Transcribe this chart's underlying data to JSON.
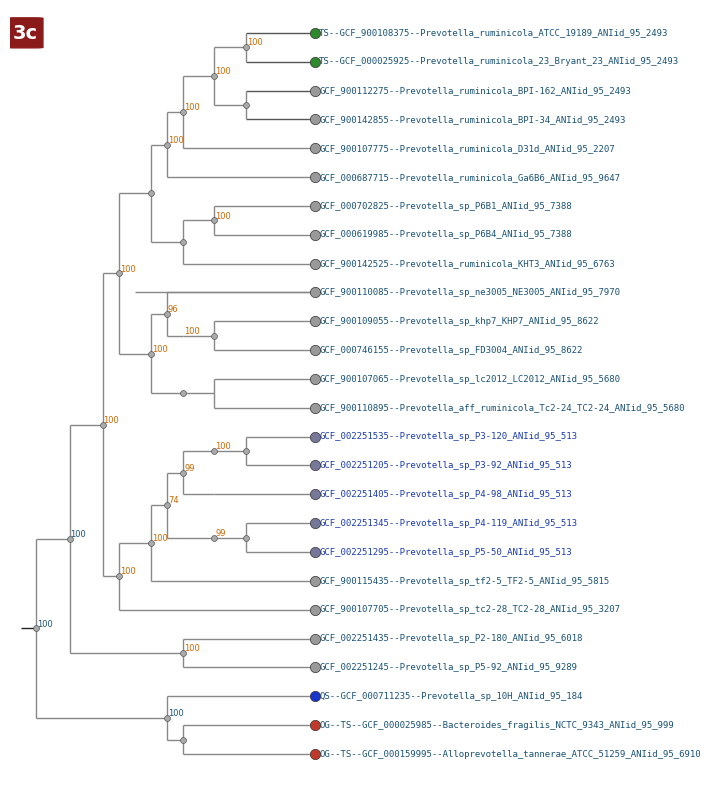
{
  "taxa": [
    {
      "y": 1,
      "label": "TS--GCF_900108375--Prevotella_ruminicola_ATCC_19189_ANIid_95_2493",
      "dot": "#2d8a2d",
      "tc": "#1a5276"
    },
    {
      "y": 2,
      "label": "TS--GCF_000025925--Prevotella_ruminicola_23_Bryant_23_ANIid_95_2493",
      "dot": "#2d8a2d",
      "tc": "#1a5276"
    },
    {
      "y": 3,
      "label": "GCF_900112275--Prevotella_ruminicola_BPI-162_ANIid_95_2493",
      "dot": "#999999",
      "tc": "#1a5276"
    },
    {
      "y": 4,
      "label": "GCF_900142855--Prevotella_ruminicola_BPI-34_ANIid_95_2493",
      "dot": "#999999",
      "tc": "#1a5276"
    },
    {
      "y": 5,
      "label": "GCF_900107775--Prevotella_ruminicola_D31d_ANIid_95_2207",
      "dot": "#999999",
      "tc": "#1a5276"
    },
    {
      "y": 6,
      "label": "GCF_000687715--Prevotella_ruminicola_Ga6B6_ANIid_95_9647",
      "dot": "#999999",
      "tc": "#1a5276"
    },
    {
      "y": 7,
      "label": "GCF_000702825--Prevotella_sp_P6B1_ANIid_95_7388",
      "dot": "#999999",
      "tc": "#1a5276"
    },
    {
      "y": 8,
      "label": "GCF_000619985--Prevotella_sp_P6B4_ANIid_95_7388",
      "dot": "#999999",
      "tc": "#1a5276"
    },
    {
      "y": 9,
      "label": "GCF_900142525--Prevotella_ruminicola_KHT3_ANIid_95_6763",
      "dot": "#999999",
      "tc": "#1a5276"
    },
    {
      "y": 10,
      "label": "GCF_900110085--Prevotella_sp_ne3005_NE3005_ANIid_95_7970",
      "dot": "#999999",
      "tc": "#1a5276"
    },
    {
      "y": 11,
      "label": "GCF_900109055--Prevotella_sp_khp7_KHP7_ANIid_95_8622",
      "dot": "#999999",
      "tc": "#1a5276"
    },
    {
      "y": 12,
      "label": "GCF_000746155--Prevotella_sp_FD3004_ANIid_95_8622",
      "dot": "#999999",
      "tc": "#1a5276"
    },
    {
      "y": 13,
      "label": "GCF_900107065--Prevotella_sp_lc2012_LC2012_ANIid_95_5680",
      "dot": "#999999",
      "tc": "#1a5276"
    },
    {
      "y": 14,
      "label": "GCF_900110895--Prevotella_aff_ruminicola_Tc2-24_TC2-24_ANIid_95_5680",
      "dot": "#999999",
      "tc": "#1a5276"
    },
    {
      "y": 15,
      "label": "GCF_002251535--Prevotella_sp_P3-120_ANIid_95_513",
      "dot": "#777799",
      "tc": "#1a3ab0"
    },
    {
      "y": 16,
      "label": "GCF_002251205--Prevotella_sp_P3-92_ANIid_95_513",
      "dot": "#777799",
      "tc": "#1a3ab0"
    },
    {
      "y": 17,
      "label": "GCF_002251405--Prevotella_sp_P4-98_ANIid_95_513",
      "dot": "#777799",
      "tc": "#1a3ab0"
    },
    {
      "y": 18,
      "label": "GCF_002251345--Prevotella_sp_P4-119_ANIid_95_513",
      "dot": "#777799",
      "tc": "#1a3ab0"
    },
    {
      "y": 19,
      "label": "GCF_002251295--Prevotella_sp_P5-50_ANIid_95_513",
      "dot": "#777799",
      "tc": "#1a3ab0"
    },
    {
      "y": 20,
      "label": "GCF_900115435--Prevotella_sp_tf2-5_TF2-5_ANIid_95_5815",
      "dot": "#999999",
      "tc": "#1a5276"
    },
    {
      "y": 21,
      "label": "GCF_900107705--Prevotella_sp_tc2-28_TC2-28_ANIid_95_3207",
      "dot": "#999999",
      "tc": "#1a5276"
    },
    {
      "y": 22,
      "label": "GCF_002251435--Prevotella_sp_P2-180_ANIid_95_6018",
      "dot": "#999999",
      "tc": "#1a5276"
    },
    {
      "y": 23,
      "label": "GCF_002251245--Prevotella_sp_P5-92_ANIid_95_9289",
      "dot": "#999999",
      "tc": "#1a5276"
    },
    {
      "y": 24,
      "label": "QS--GCF_000711235--Prevotella_sp_10H_ANIid_95_184",
      "dot": "#1a35cc",
      "tc": "#1a5276"
    },
    {
      "y": 25,
      "label": "OG--TS--GCF_000025985--Bacteroides_fragilis_NCTC_9343_ANIid_95_999",
      "dot": "#c0392b",
      "tc": "#1a5276"
    },
    {
      "y": 26,
      "label": "OG--TS--GCF_000159995--Alloprevotella_tannerae_ATCC_51259_ANIid_95_6910",
      "dot": "#c0392b",
      "tc": "#1a5276"
    }
  ],
  "title": "3c",
  "title_bg": "#8B1A1A",
  "bc": "#555555",
  "bgray": "#888888",
  "bk": "#222222",
  "boot_color": "#cc6600",
  "boot_color2": "#1a5276",
  "label_fontsize": 6.5,
  "dot_size": 55
}
